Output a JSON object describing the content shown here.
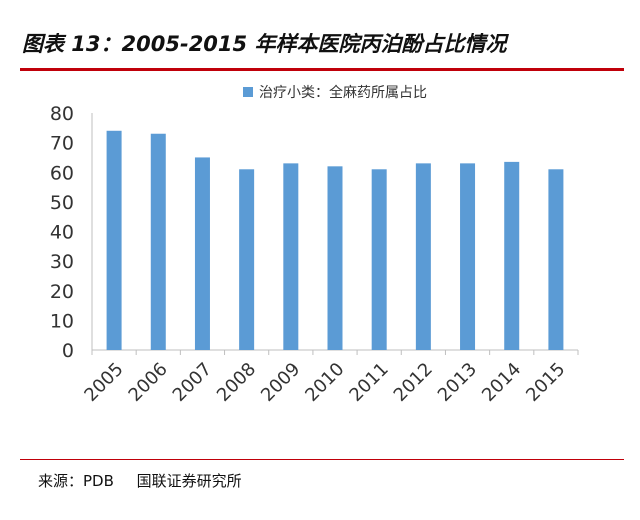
{
  "header": {
    "title": "图表 13：2005-2015 年样本医院丙泊酚占比情况"
  },
  "footer": {
    "source_label": "来源：PDB",
    "source_org": "国联证券研究所"
  },
  "colors": {
    "bar": "#5b9bd5",
    "rule": "#c0000a",
    "axis": "#bfbfbf",
    "text": "#333333"
  },
  "chart_data": {
    "type": "bar",
    "title": "",
    "xlabel": "",
    "ylabel": "",
    "categories": [
      "2005",
      "2006",
      "2007",
      "2008",
      "2009",
      "2010",
      "2011",
      "2012",
      "2013",
      "2014",
      "2015"
    ],
    "series": [
      {
        "name": "治疗小类：全麻药所属占比",
        "values": [
          74,
          73,
          65,
          61,
          63,
          62,
          61,
          63,
          63,
          63.5,
          61
        ]
      }
    ],
    "ylim": [
      0,
      80
    ],
    "yticks": [
      0,
      10,
      20,
      30,
      40,
      50,
      60,
      70,
      80
    ],
    "grid": false,
    "legend_position": "top-center"
  }
}
